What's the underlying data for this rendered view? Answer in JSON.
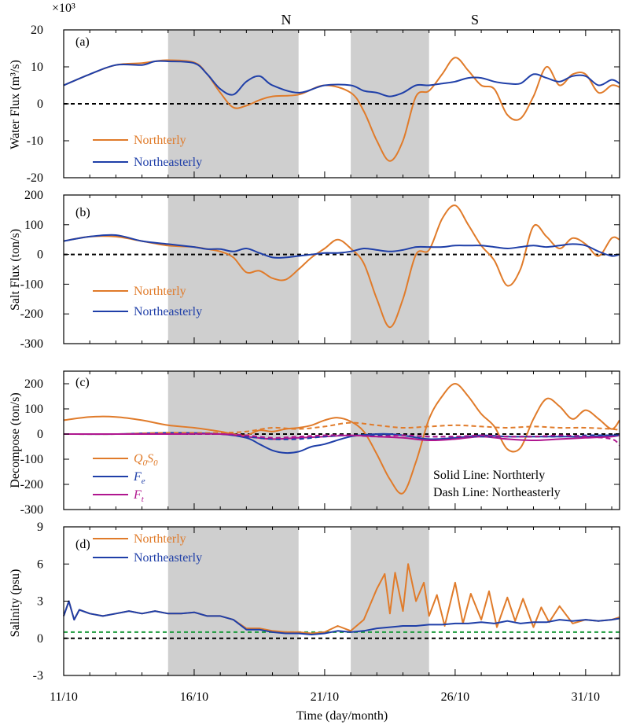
{
  "figure": {
    "top_labels": [
      "N",
      "S"
    ],
    "xlabel": "Time (day/month)",
    "x_tick_labels": [
      "11/10",
      "16/10",
      "21/10",
      "26/10",
      "31/10"
    ],
    "shaded_periods": [
      [
        15,
        20
      ],
      [
        22,
        25
      ]
    ]
  },
  "colors": {
    "northerly": "#e07b2a",
    "northeasterly": "#1f3fa8",
    "ft": "#b0168f",
    "zero_line": "#000000",
    "green_ref": "#1a9a3a",
    "shade": "#cfcfcf"
  },
  "panels": [
    {
      "label": "(a)",
      "ylabel_text": "Water Flux (m³/s)",
      "multiplier": "×10³",
      "legend": [
        "Northterly",
        "Northeasterly"
      ]
    },
    {
      "label": "(b)",
      "ylabel_text": "Salt Flux (ton/s)",
      "legend": [
        "Northterly",
        "Northeasterly"
      ]
    },
    {
      "label": "(c)",
      "ylabel_text": "Decompose (ton/s)",
      "legend": [
        "Q0S0",
        "Fe",
        "Ft"
      ],
      "note_solid": "Solid Line: Northterly",
      "note_dash": "Dash Line: Northeasterly"
    },
    {
      "label": "(d)",
      "ylabel_text": "Salinity (psu)",
      "legend": [
        "Northterly",
        "Northeasterly"
      ]
    }
  ],
  "chart_data": [
    {
      "type": "line",
      "panel": "a",
      "ylabel": "Water Flux (m³/s)",
      "y_multiplier": 1000,
      "xlim": [
        11,
        32.3
      ],
      "ylim": [
        -20,
        20
      ],
      "yticks": [
        -20,
        -10,
        0,
        10,
        20
      ],
      "series": [
        {
          "name": "Northterly",
          "x": [
            11,
            12,
            13,
            14,
            14.5,
            15,
            16,
            16.5,
            17,
            17.5,
            18,
            18.5,
            19,
            20,
            21,
            22,
            22.5,
            23,
            23.5,
            24,
            24.5,
            25,
            25.5,
            26,
            26.5,
            27,
            27.5,
            28,
            28.5,
            29,
            29.5,
            30,
            30.5,
            31,
            31.5,
            32,
            32.3
          ],
          "y": [
            5,
            8,
            10.5,
            11,
            11.5,
            11.8,
            11.2,
            8,
            3,
            -1,
            -0.5,
            1,
            2,
            2.5,
            5,
            3,
            -2,
            -10,
            -15.5,
            -10,
            2,
            3.5,
            8,
            12.5,
            9,
            5,
            4,
            -3,
            -4,
            2,
            10,
            5,
            8,
            8,
            3,
            5,
            4.5
          ]
        },
        {
          "name": "Northeasterly",
          "x": [
            11,
            12,
            13,
            14,
            14.5,
            15,
            16,
            16.5,
            17,
            17.5,
            18,
            18.5,
            19,
            20,
            21,
            22,
            22.5,
            23,
            23.5,
            24,
            24.5,
            25,
            25.5,
            26,
            26.5,
            27,
            27.5,
            28,
            28.5,
            29,
            29.5,
            30,
            30.5,
            31,
            31.5,
            32,
            32.3
          ],
          "y": [
            5,
            8,
            10.5,
            10.5,
            11.5,
            11.5,
            11,
            8,
            4,
            2.5,
            6,
            7.5,
            5,
            3,
            5,
            5,
            3.5,
            3,
            2,
            3,
            5,
            5,
            5.5,
            6,
            7,
            7,
            6,
            5.5,
            5.5,
            8,
            7,
            6,
            7.5,
            7.5,
            5,
            6.5,
            5.5
          ]
        }
      ]
    },
    {
      "type": "line",
      "panel": "b",
      "ylabel": "Salt Flux (ton/s)",
      "xlim": [
        11,
        32.3
      ],
      "ylim": [
        -300,
        200
      ],
      "yticks": [
        -300,
        -200,
        -100,
        0,
        100,
        200
      ],
      "series": [
        {
          "name": "Northterly",
          "x": [
            11,
            12,
            13,
            14,
            15,
            16,
            16.5,
            17,
            17.5,
            18,
            18.5,
            19,
            19.5,
            20,
            20.5,
            21,
            21.5,
            22,
            22.5,
            23,
            23.5,
            24,
            24.5,
            25,
            25.5,
            26,
            26.5,
            27,
            27.5,
            28,
            28.5,
            29,
            29.5,
            30,
            30.5,
            31,
            31.5,
            32,
            32.3
          ],
          "y": [
            45,
            60,
            60,
            45,
            30,
            25,
            18,
            10,
            -10,
            -60,
            -55,
            -80,
            -85,
            -50,
            -10,
            20,
            50,
            20,
            -30,
            -150,
            -245,
            -150,
            0,
            15,
            120,
            165,
            100,
            30,
            -20,
            -105,
            -50,
            95,
            60,
            20,
            55,
            35,
            -5,
            55,
            50
          ]
        },
        {
          "name": "Northeasterly",
          "x": [
            11,
            12,
            13,
            14,
            15,
            16,
            16.5,
            17,
            17.5,
            18,
            18.5,
            19,
            19.5,
            20,
            20.5,
            21,
            21.5,
            22,
            22.5,
            23,
            23.5,
            24,
            24.5,
            25,
            25.5,
            26,
            26.5,
            27,
            27.5,
            28,
            28.5,
            29,
            29.5,
            30,
            30.5,
            31,
            31.5,
            32,
            32.3
          ],
          "y": [
            45,
            60,
            65,
            45,
            35,
            25,
            18,
            18,
            10,
            20,
            5,
            -10,
            -10,
            -5,
            0,
            5,
            5,
            10,
            20,
            15,
            10,
            15,
            25,
            25,
            25,
            30,
            30,
            30,
            25,
            20,
            25,
            30,
            25,
            30,
            35,
            30,
            10,
            -5,
            0
          ]
        }
      ]
    },
    {
      "type": "line",
      "panel": "c",
      "ylabel": "Decompose (ton/s)",
      "xlim": [
        11,
        32.3
      ],
      "ylim": [
        -300,
        250
      ],
      "yticks": [
        -300,
        -200,
        -100,
        0,
        100,
        200
      ],
      "series": [
        {
          "name": "Q0S0 Northterly",
          "style": "solid",
          "x": [
            11,
            12,
            13,
            14,
            15,
            16,
            17,
            17.5,
            18,
            18.5,
            19,
            19.5,
            20,
            20.5,
            21,
            21.5,
            22,
            22.5,
            23,
            23.5,
            24,
            24.5,
            25,
            25.5,
            26,
            26.5,
            27,
            27.5,
            28,
            28.5,
            29,
            29.5,
            30,
            30.5,
            31,
            31.5,
            32,
            32.3
          ],
          "y": [
            55,
            68,
            68,
            55,
            35,
            25,
            10,
            0,
            -5,
            15,
            10,
            20,
            25,
            35,
            55,
            65,
            50,
            10,
            -80,
            -180,
            -235,
            -110,
            60,
            150,
            200,
            150,
            80,
            30,
            -60,
            -55,
            60,
            140,
            110,
            60,
            95,
            60,
            20,
            55
          ]
        },
        {
          "name": "Fe Northterly",
          "style": "solid",
          "x": [
            11,
            13,
            15,
            17,
            18,
            18.5,
            19,
            19.5,
            20,
            20.5,
            21,
            22,
            23,
            23.5,
            24,
            25,
            26,
            27,
            28,
            29,
            30,
            31,
            32,
            32.3
          ],
          "y": [
            0,
            0,
            5,
            0,
            -15,
            -40,
            -65,
            -75,
            -70,
            -50,
            -40,
            -10,
            0,
            0,
            -5,
            -20,
            -15,
            -5,
            -10,
            -10,
            -10,
            -10,
            -5,
            -5
          ]
        },
        {
          "name": "Ft Northterly",
          "style": "solid",
          "x": [
            11,
            13,
            15,
            17,
            18,
            19,
            20,
            21,
            22,
            23,
            24,
            25,
            26,
            27,
            28,
            29,
            30,
            31,
            32,
            32.3
          ],
          "y": [
            0,
            0,
            0,
            0,
            -10,
            -20,
            -15,
            -10,
            -5,
            -10,
            -15,
            -25,
            -20,
            -10,
            -20,
            -25,
            -20,
            -15,
            -10,
            -5
          ]
        },
        {
          "name": "Q0S0 Northeasterly",
          "style": "dash",
          "x": [
            11,
            13,
            15,
            17,
            18,
            19,
            20,
            21,
            22,
            23,
            24,
            25,
            26,
            27,
            28,
            29,
            30,
            31,
            32,
            32.3
          ],
          "y": [
            0,
            0,
            5,
            5,
            10,
            25,
            20,
            30,
            45,
            35,
            25,
            30,
            35,
            30,
            25,
            30,
            25,
            25,
            20,
            15
          ]
        },
        {
          "name": "Fe Northeasterly",
          "style": "dash",
          "x": [
            11,
            13,
            15,
            17,
            18,
            19,
            20,
            21,
            22,
            23,
            24,
            25,
            26,
            27,
            28,
            29,
            30,
            31,
            32,
            32.3
          ],
          "y": [
            0,
            0,
            0,
            0,
            -10,
            -20,
            -20,
            -10,
            -5,
            -5,
            -5,
            -10,
            -10,
            -10,
            -10,
            -10,
            -10,
            -5,
            -5,
            -5
          ]
        },
        {
          "name": "Ft Northeasterly",
          "style": "dash",
          "x": [
            11,
            13,
            15,
            17,
            18,
            19,
            20,
            21,
            22,
            23,
            24,
            25,
            26,
            27,
            28,
            29,
            30,
            31,
            32,
            32.3
          ],
          "y": [
            0,
            0,
            0,
            0,
            -5,
            -15,
            -10,
            -5,
            -5,
            -10,
            -5,
            -10,
            -10,
            -5,
            -10,
            -10,
            -5,
            -10,
            -20,
            -45
          ]
        }
      ]
    },
    {
      "type": "line",
      "panel": "d",
      "ylabel": "Salinity (psu)",
      "xlim": [
        11,
        32.3
      ],
      "ylim": [
        -3,
        9
      ],
      "yticks": [
        -3,
        0,
        3,
        6,
        9
      ],
      "reference_lines": [
        0,
        0.5
      ],
      "series": [
        {
          "name": "Northterly",
          "x": [
            11,
            11.2,
            11.4,
            11.6,
            12,
            12.5,
            13,
            13.5,
            14,
            14.5,
            15,
            15.5,
            16,
            16.5,
            17,
            17.5,
            18,
            18.5,
            19,
            19.5,
            20,
            20.5,
            21,
            21.5,
            22,
            22.5,
            23,
            23.3,
            23.5,
            23.7,
            24,
            24.2,
            24.5,
            24.8,
            25,
            25.3,
            25.6,
            26,
            26.3,
            26.6,
            27,
            27.3,
            27.6,
            28,
            28.3,
            28.6,
            29,
            29.3,
            29.6,
            30,
            30.5,
            31,
            31.5,
            32,
            32.3
          ],
          "y": [
            1.8,
            3,
            1.5,
            2.3,
            2,
            1.8,
            2,
            2.2,
            2,
            2.2,
            2,
            2,
            2.1,
            1.8,
            1.8,
            1.5,
            0.8,
            0.8,
            0.6,
            0.5,
            0.5,
            0.4,
            0.5,
            1,
            0.6,
            1.5,
            4,
            5.2,
            2,
            5.3,
            2.2,
            6,
            3,
            4.5,
            1.8,
            3.5,
            1,
            4.5,
            1.2,
            3.6,
            1.5,
            3.8,
            0.9,
            3.3,
            1.4,
            3.2,
            0.9,
            2.5,
            1.3,
            2.6,
            1.2,
            1.5,
            1.4,
            1.5,
            1.7
          ]
        },
        {
          "name": "Northeasterly",
          "x": [
            11,
            11.2,
            11.4,
            11.6,
            12,
            12.5,
            13,
            13.5,
            14,
            14.5,
            15,
            15.5,
            16,
            16.5,
            17,
            17.5,
            18,
            18.5,
            19,
            19.5,
            20,
            20.5,
            21,
            21.5,
            22,
            22.5,
            23,
            23.5,
            24,
            24.5,
            25,
            25.5,
            26,
            26.5,
            27,
            27.5,
            28,
            28.5,
            29,
            29.5,
            30,
            30.5,
            31,
            31.5,
            32,
            32.3
          ],
          "y": [
            1.8,
            3,
            1.5,
            2.3,
            2,
            1.8,
            2,
            2.2,
            2,
            2.2,
            2,
            2,
            2.1,
            1.8,
            1.8,
            1.5,
            0.7,
            0.7,
            0.5,
            0.4,
            0.4,
            0.3,
            0.4,
            0.6,
            0.5,
            0.6,
            0.8,
            0.9,
            1,
            1,
            1.1,
            1.1,
            1.2,
            1.2,
            1.3,
            1.2,
            1.4,
            1.2,
            1.3,
            1.3,
            1.5,
            1.4,
            1.5,
            1.4,
            1.5,
            1.6
          ]
        }
      ]
    }
  ]
}
